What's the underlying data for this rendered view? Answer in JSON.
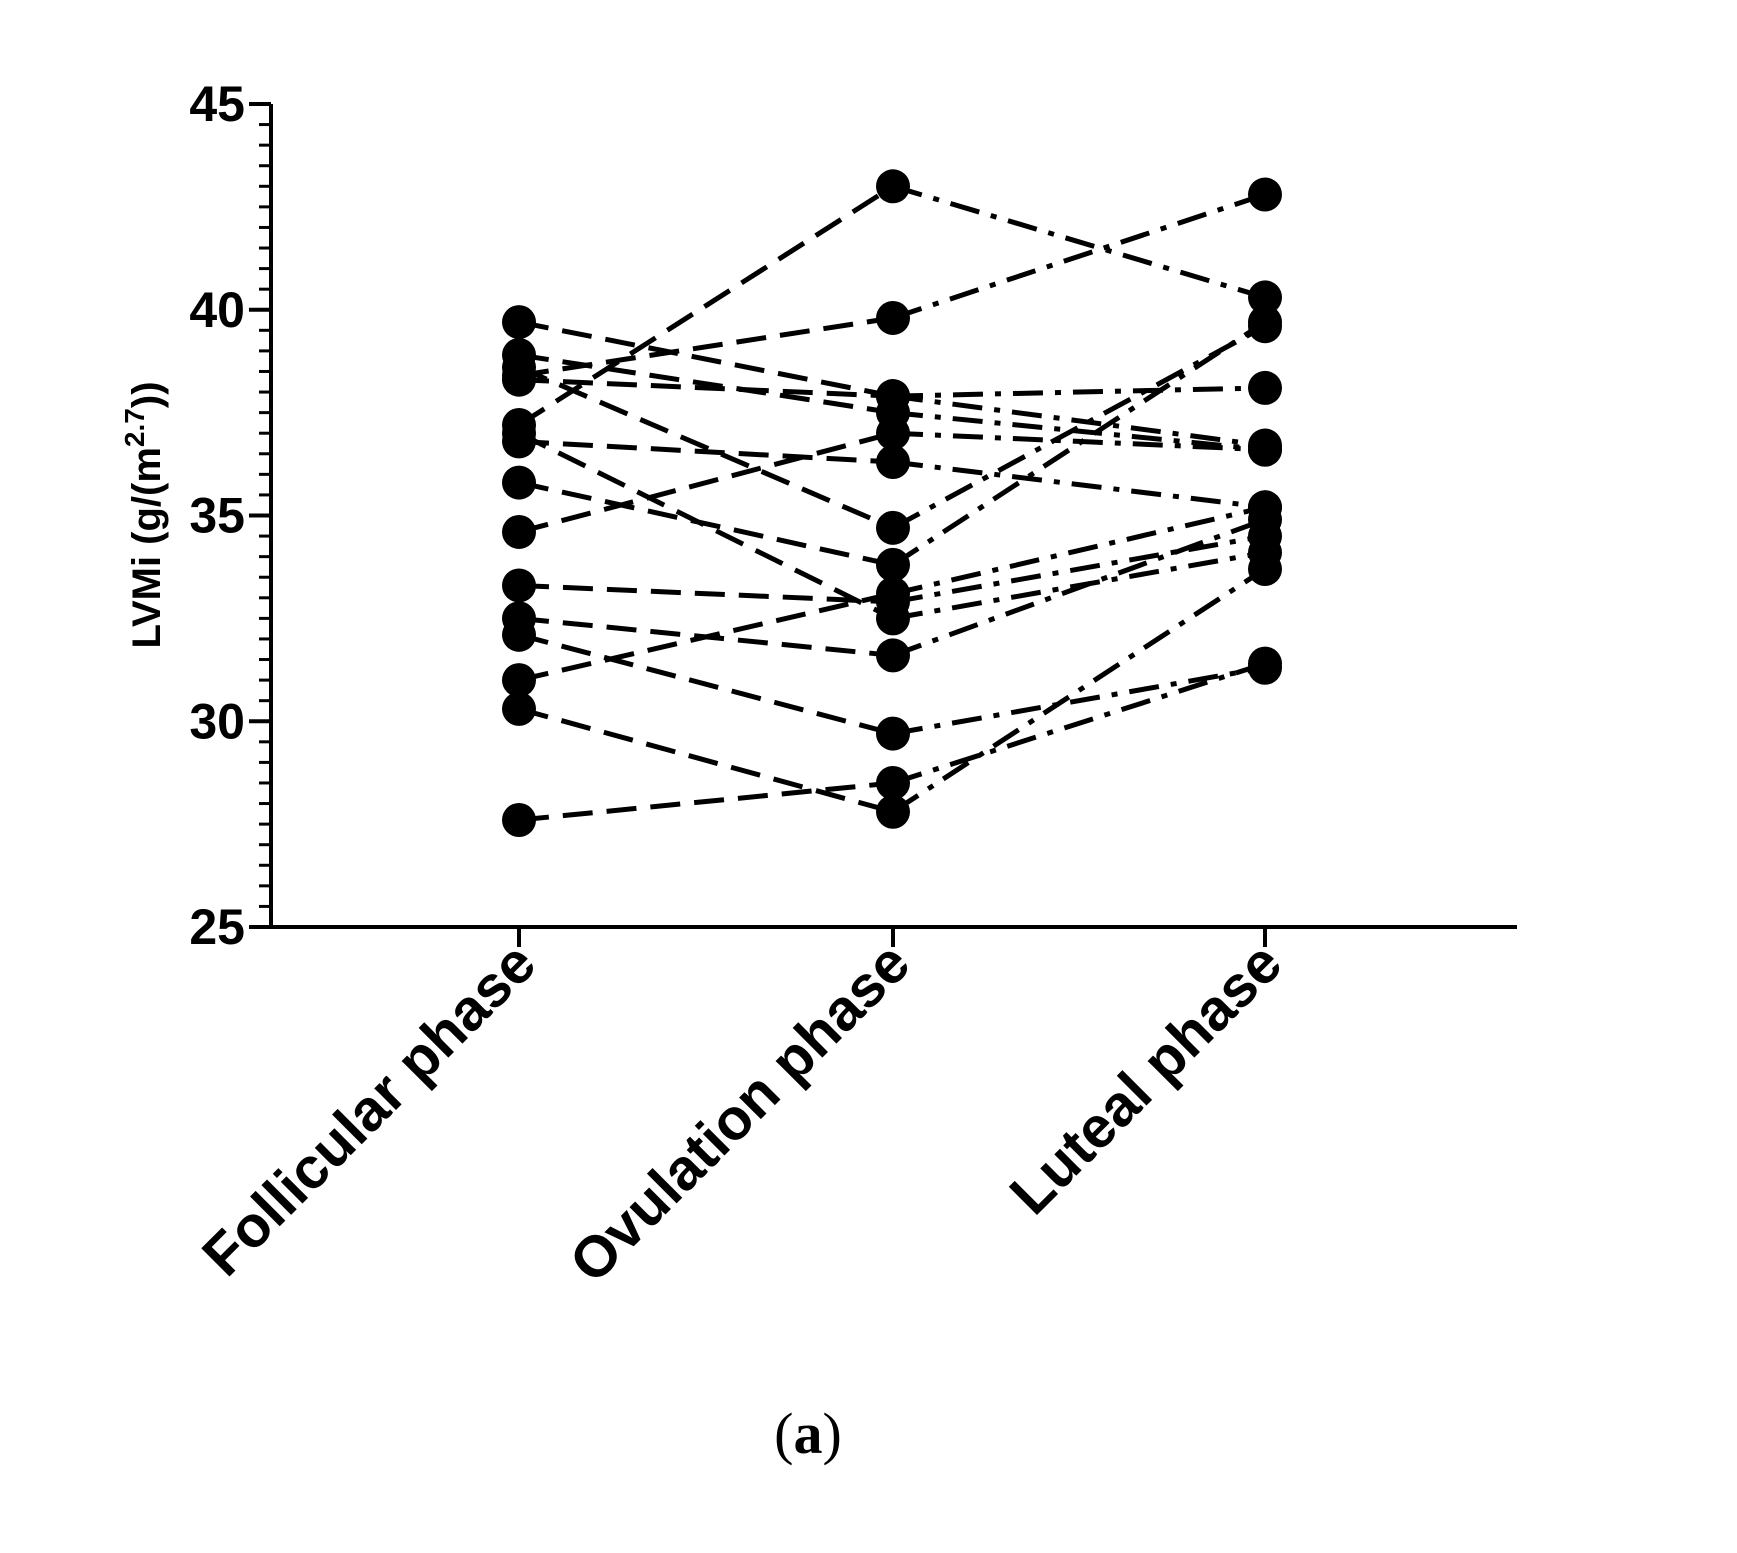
{
  "chart_data": {
    "type": "line",
    "ylabel_main": "LVMi (g/(m",
    "ylabel_sup": "2.7",
    "ylabel_tail": "))",
    "xlabel": "",
    "categories": [
      "Follicular phase",
      "Ovulation phase",
      "Luteal phase"
    ],
    "y_ticks": [
      "25",
      "30",
      "35",
      "40",
      "45"
    ],
    "ylim": [
      25,
      45
    ],
    "y_minor_step": 0.5,
    "grid": false,
    "legend": "none",
    "marker": "filled-circle",
    "line_style": "dashed",
    "color": "#000000",
    "series": [
      {
        "values": [
          37.2,
          43.0,
          40.3
        ]
      },
      {
        "values": [
          39.7,
          37.9,
          36.7
        ]
      },
      {
        "values": [
          38.9,
          37.5,
          36.6
        ]
      },
      {
        "values": [
          38.6,
          34.7,
          39.6
        ]
      },
      {
        "values": [
          38.3,
          37.9,
          38.1
        ]
      },
      {
        "values": [
          36.8,
          36.3,
          35.2
        ]
      },
      {
        "values": [
          35.8,
          33.8,
          39.7
        ]
      },
      {
        "values": [
          34.6,
          37.0,
          36.6
        ]
      },
      {
        "values": [
          33.3,
          32.9,
          34.5
        ]
      },
      {
        "values": [
          32.5,
          31.6,
          34.9
        ]
      },
      {
        "values": [
          32.1,
          29.7,
          31.3
        ]
      },
      {
        "values": [
          31.0,
          33.1,
          35.2
        ]
      },
      {
        "values": [
          30.3,
          27.8,
          33.7
        ]
      },
      {
        "values": [
          27.6,
          28.5,
          31.4
        ]
      },
      {
        "values": [
          38.4,
          39.8,
          42.8
        ]
      },
      {
        "values": [
          37.0,
          32.5,
          34.1
        ]
      }
    ],
    "panel_label": {
      "open": "(",
      "letter": "a",
      "close": ")"
    }
  }
}
